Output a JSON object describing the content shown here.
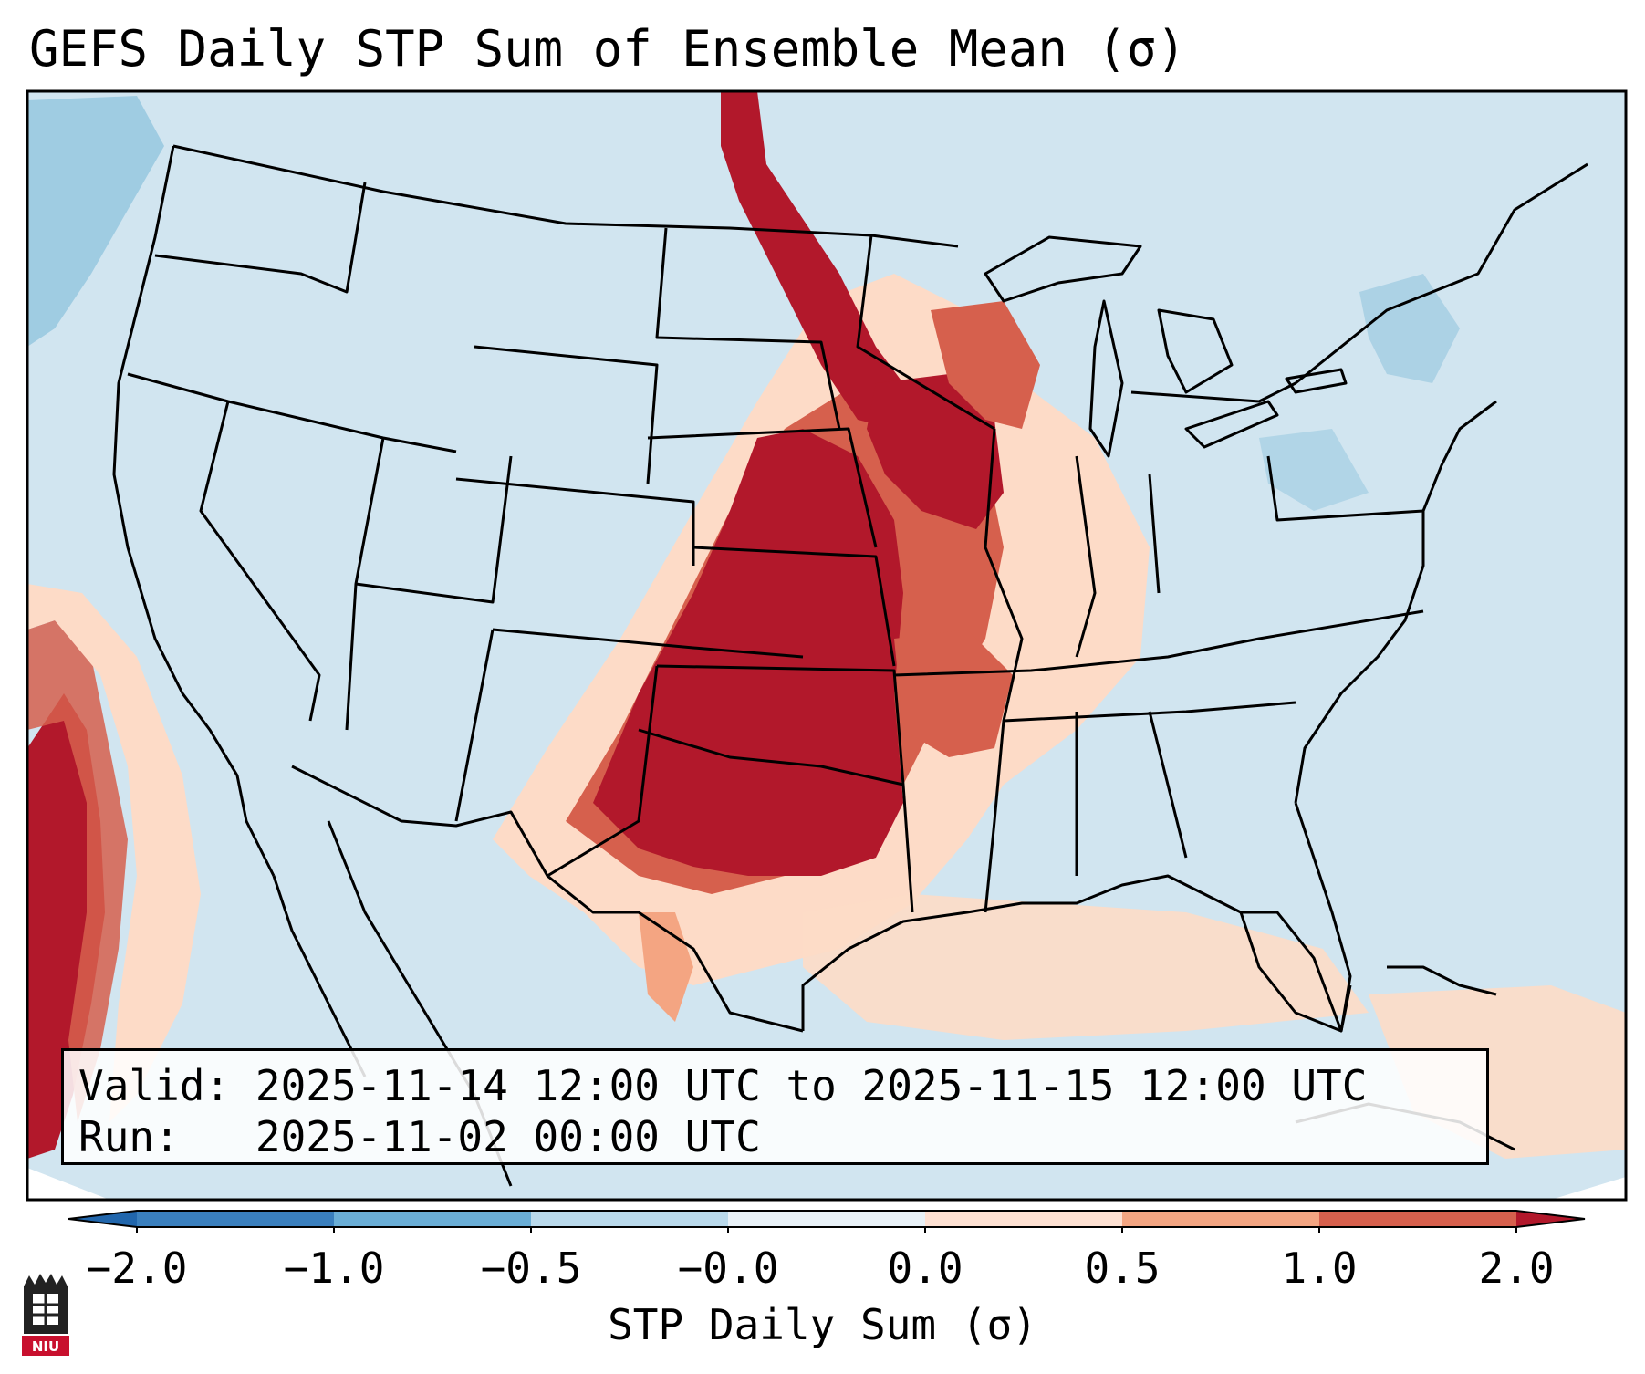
{
  "title": "GEFS Daily STP Sum of Ensemble Mean (σ)",
  "info": {
    "valid_label": "Valid:",
    "valid_value": "2025-11-14 12:00 UTC to 2025-11-15 12:00 UTC",
    "run_label": "Run:",
    "run_value": "2025-11-02 00:00 UTC"
  },
  "colorbar": {
    "label": "STP Daily Sum (σ)",
    "ticks": [
      "−2.0",
      "−1.0",
      "−0.5",
      "−0.0",
      "0.0",
      "0.5",
      "1.0",
      "2.0"
    ],
    "colors": [
      "#3a7fbd",
      "#6aaed6",
      "#b9d9eb",
      "#e8f1f7",
      "#fde0d2",
      "#f3a582",
      "#d6604d",
      "#b2182b"
    ],
    "extend_low": "#2166ac",
    "extend_high": "#b2182b"
  },
  "map": {
    "background": "#d1e5f0",
    "high_color": "#b2182b",
    "medium_color": "#d6604d",
    "low_color": "#f4a582",
    "faint_color": "#fddbc7",
    "negative_color": "#92c5de",
    "region": "Contiguous United States"
  },
  "logo": {
    "text": "NIU",
    "color": "#c8102e"
  }
}
